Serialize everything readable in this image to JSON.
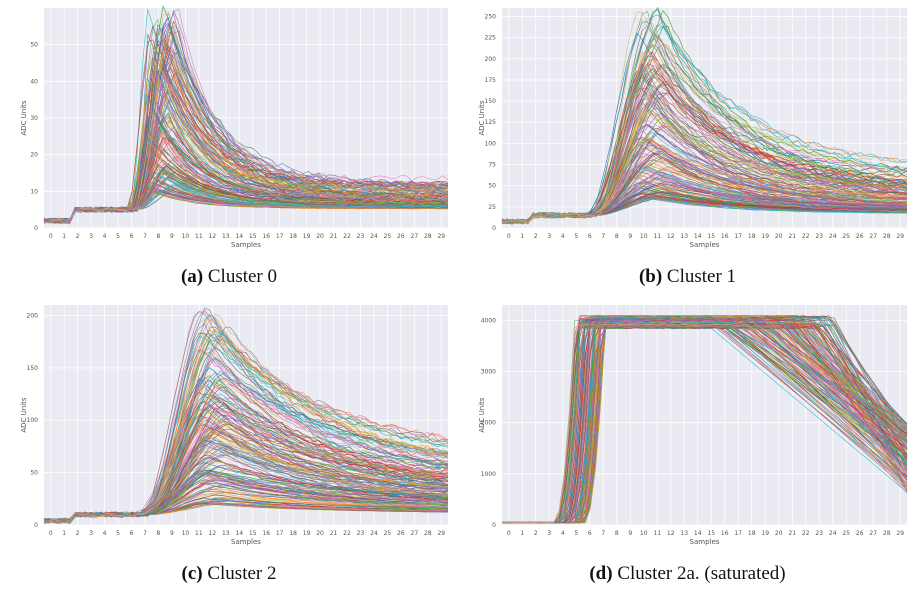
{
  "chart_data": [
    {
      "type": "line",
      "panel_letter": "(a)",
      "caption": "Cluster 0",
      "xlabel": "Samples",
      "ylabel": "ADC Units",
      "xlim": [
        0,
        39
      ],
      "ylim": [
        0,
        60
      ],
      "x_ticks": [
        0,
        1,
        2,
        3,
        4,
        5,
        6,
        7,
        8,
        9,
        10,
        11,
        12,
        13,
        14,
        15,
        16,
        17,
        18,
        19,
        20,
        21,
        22,
        23,
        24,
        25,
        26,
        27,
        28,
        29
      ],
      "y_ticks": [
        0,
        10,
        20,
        30,
        40,
        50
      ],
      "y_tick_labels": [
        "0",
        "10",
        "20",
        "30",
        "40",
        "50"
      ],
      "grid": true,
      "shape": {
        "base": 2,
        "step": 5,
        "step_at": 3,
        "rise": 8.5,
        "peak_at": 11.5,
        "decay": 15,
        "tail_frac": 0.1,
        "tail_from": 19
      },
      "series_summary": {
        "count": 180,
        "peak_max": 57,
        "peak_typical_range": [
          5,
          48
        ]
      }
    },
    {
      "type": "line",
      "panel_letter": "(b)",
      "caption": "Cluster 1",
      "xlabel": "Samples",
      "ylabel": "ADC Units",
      "xlim": [
        0,
        39
      ],
      "ylim": [
        0,
        260
      ],
      "x_ticks": [
        0,
        1,
        2,
        3,
        4,
        5,
        6,
        7,
        8,
        9,
        10,
        11,
        12,
        13,
        14,
        15,
        16,
        17,
        18,
        19,
        20,
        21,
        22,
        23,
        24,
        25,
        26,
        27,
        28,
        29
      ],
      "y_ticks": [
        0,
        25,
        50,
        75,
        100,
        125,
        150,
        175,
        200,
        225,
        250
      ],
      "y_tick_labels": [
        "0",
        "25",
        "50",
        "75",
        "100",
        "125",
        "150",
        "175",
        "200",
        "225",
        "250"
      ],
      "grid": true,
      "shape": {
        "base": 8,
        "step": 15,
        "step_at": 3,
        "rise": 8.5,
        "peak_at": 14.5,
        "decay": 28,
        "tail_frac": 0.15,
        "tail_from": 32
      },
      "series_summary": {
        "count": 180,
        "peak_max": 245,
        "peak_typical_range": [
          20,
          200
        ]
      }
    },
    {
      "type": "line",
      "panel_letter": "(c)",
      "caption": "Cluster 2",
      "xlabel": "Samples",
      "ylabel": "ADC Units",
      "xlim": [
        0,
        39
      ],
      "ylim": [
        0,
        210
      ],
      "x_ticks": [
        0,
        1,
        2,
        3,
        4,
        5,
        6,
        7,
        8,
        9,
        10,
        11,
        12,
        13,
        14,
        15,
        16,
        17,
        18,
        19,
        20,
        21,
        22,
        23,
        24,
        25,
        26,
        27,
        28,
        29
      ],
      "y_ticks": [
        0,
        50,
        100,
        150,
        200
      ],
      "y_tick_labels": [
        "0",
        "50",
        "100",
        "150",
        "200"
      ],
      "grid": true,
      "shape": {
        "base": 4,
        "step": 10,
        "step_at": 3,
        "rise": 9.5,
        "peak_at": 16.5,
        "decay": 40,
        "tail_frac": 0.2,
        "tail_from": 36
      },
      "series_summary": {
        "count": 180,
        "peak_max": 205,
        "peak_typical_range": [
          10,
          190
        ]
      }
    },
    {
      "type": "line",
      "panel_letter": "(d)",
      "caption": "Cluster 2a. (saturated)",
      "xlabel": "Samples",
      "ylabel": "ADC Units",
      "xlim": [
        0,
        39
      ],
      "ylim": [
        0,
        4300
      ],
      "x_ticks": [
        0,
        1,
        2,
        3,
        4,
        5,
        6,
        7,
        8,
        9,
        10,
        11,
        12,
        13,
        14,
        15,
        16,
        17,
        18,
        19,
        20,
        21,
        22,
        23,
        24,
        25,
        26,
        27,
        28,
        29
      ],
      "y_ticks": [
        0,
        1000,
        2000,
        3000,
        4000
      ],
      "y_tick_labels": [
        "0",
        "1000",
        "2000",
        "3000",
        "4000"
      ],
      "grid": true,
      "shape": {
        "base": 40,
        "saturation": 4095,
        "rise_from": 7,
        "rise_to": 10,
        "fall_from": 20,
        "end_range": [
          600,
          2000
        ]
      },
      "series_summary": {
        "count": 180,
        "saturation_level": 4095
      }
    }
  ]
}
